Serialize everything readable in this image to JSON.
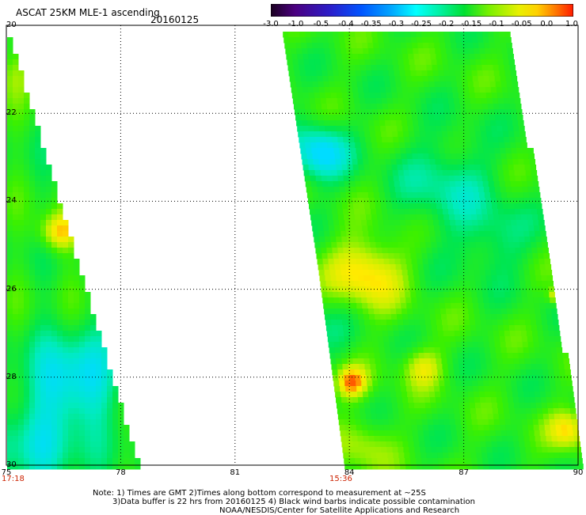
{
  "header": {
    "title": "ASCAT 25KM MLE-1 ascending",
    "date": "20160125"
  },
  "colorbar": {
    "labels": [
      "-3.0",
      "-1.0",
      "-0.5",
      "-0.4",
      "-0.35",
      "-0.3",
      "-0.25",
      "-0.2",
      "-0.15",
      "-0.1",
      "-0.05",
      "0.0",
      "1.0"
    ],
    "colors": [
      "#2a0030",
      "#4b0080",
      "#2200cc",
      "#0050ff",
      "#0099ff",
      "#00e5ff",
      "#00f0b0",
      "#00e030",
      "#66f000",
      "#d0f000",
      "#ffee00",
      "#ff9900",
      "#ff2200"
    ]
  },
  "axes": {
    "lat_labels": [
      "20",
      "22",
      "24",
      "26",
      "28",
      "30"
    ],
    "lon_labels": [
      "75",
      "78",
      "81",
      "84",
      "87",
      "90"
    ]
  },
  "swath_times": [
    "17:18",
    "15:36"
  ],
  "notes": {
    "line1": "Note: 1) Times are GMT 2)Times along bottom correspond to measurement at ~25S",
    "line2": "3)Data buffer is 22 hrs from 20160125 4) Black wind barbs indicate possible contamination",
    "line3": "NOAA/NESDIS/Center for Satellite Applications and Research"
  }
}
